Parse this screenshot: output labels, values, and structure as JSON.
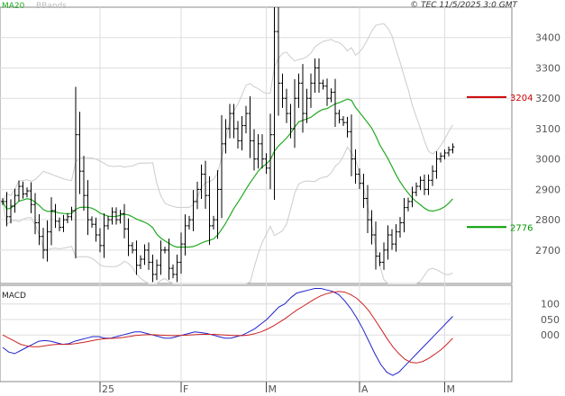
{
  "legend": {
    "ma_label": "MA20",
    "bb_label": "BBands",
    "ma_color": "#22aa22",
    "bb_color": "#cccccc"
  },
  "copyright": "© TEC 11/5/2025 3:0 GMT",
  "macd_label": "MACD",
  "chart_data": [
    {
      "type": "ohlc",
      "price_axis": {
        "ylim": [
          2590,
          3500
        ],
        "ticks": [
          2700,
          2800,
          2900,
          3000,
          3100,
          3200,
          3300,
          3400
        ]
      },
      "levels": [
        {
          "value": 3204,
          "label": "3204",
          "color": "#cc0000"
        },
        {
          "value": 2776,
          "label": "2776",
          "color": "#009900"
        }
      ],
      "x_axis": {
        "labels": [
          "25",
          "F",
          "M",
          "A",
          "M"
        ],
        "label_bars": [
          24,
          44,
          65,
          88,
          109
        ]
      },
      "close": [
        2860,
        2810,
        2845,
        2880,
        2910,
        2885,
        2895,
        2850,
        2790,
        2745,
        2700,
        2760,
        2830,
        2795,
        2775,
        2800,
        2810,
        2830,
        3080,
        2960,
        2880,
        2800,
        2785,
        2750,
        2715,
        2780,
        2800,
        2825,
        2800,
        2820,
        2770,
        2715,
        2700,
        2650,
        2670,
        2700,
        2660,
        2620,
        2650,
        2700,
        2700,
        2640,
        2620,
        2660,
        2720,
        2780,
        2800,
        2860,
        2900,
        2950,
        2880,
        2780,
        2800,
        2900,
        3050,
        3100,
        3150,
        3100,
        3060,
        3110,
        3150,
        3060,
        3000,
        3050,
        3000,
        2970,
        3080,
        3420,
        3250,
        3200,
        3150,
        3100,
        3200,
        3250,
        3150,
        3200,
        3250,
        3300,
        3250,
        3240,
        3200,
        3220,
        3150,
        3130,
        3120,
        3090,
        3000,
        2950,
        2920,
        2870,
        2800,
        2750,
        2680,
        2660,
        2700,
        2750,
        2720,
        2760,
        2790,
        2840,
        2860,
        2890,
        2910,
        2930,
        2900,
        2930,
        2960,
        3000,
        3010,
        3020,
        3030,
        3040
      ]
    },
    {
      "type": "line",
      "title": "MACD",
      "ylim": [
        -150,
        160
      ],
      "ticks": [
        100,
        50,
        0
      ],
      "tick_labels": [
        "100",
        "050",
        "000"
      ],
      "series": [
        {
          "color": "#2222cc",
          "values": [
            -40,
            -55,
            -60,
            -50,
            -40,
            -30,
            -20,
            -18,
            -20,
            -25,
            -30,
            -28,
            -20,
            -15,
            -10,
            -5,
            -5,
            -10,
            -10,
            -5,
            0,
            5,
            10,
            10,
            5,
            0,
            -5,
            -10,
            -10,
            -5,
            0,
            5,
            10,
            8,
            5,
            0,
            -5,
            -10,
            -10,
            -5,
            0,
            10,
            20,
            35,
            50,
            70,
            90,
            100,
            120,
            135,
            140,
            145,
            150,
            150,
            145,
            140,
            130,
            110,
            85,
            55,
            20,
            -20,
            -60,
            -95,
            -120,
            -130,
            -120,
            -100,
            -80,
            -60,
            -40,
            -20,
            0,
            20,
            40,
            60
          ]
        },
        {
          "color": "#cc2222",
          "values": [
            0,
            -10,
            -20,
            -30,
            -35,
            -38,
            -38,
            -35,
            -32,
            -30,
            -30,
            -30,
            -28,
            -25,
            -22,
            -18,
            -14,
            -12,
            -11,
            -10,
            -8,
            -5,
            -2,
            0,
            1,
            1,
            0,
            -1,
            -2,
            -2,
            -1,
            0,
            1,
            2,
            2,
            2,
            1,
            0,
            -1,
            -2,
            -2,
            0,
            4,
            10,
            18,
            28,
            40,
            52,
            66,
            80,
            92,
            104,
            116,
            126,
            133,
            138,
            140,
            138,
            130,
            118,
            100,
            78,
            50,
            20,
            -10,
            -38,
            -60,
            -78,
            -88,
            -90,
            -85,
            -75,
            -62,
            -48,
            -30,
            -10
          ]
        }
      ]
    }
  ]
}
